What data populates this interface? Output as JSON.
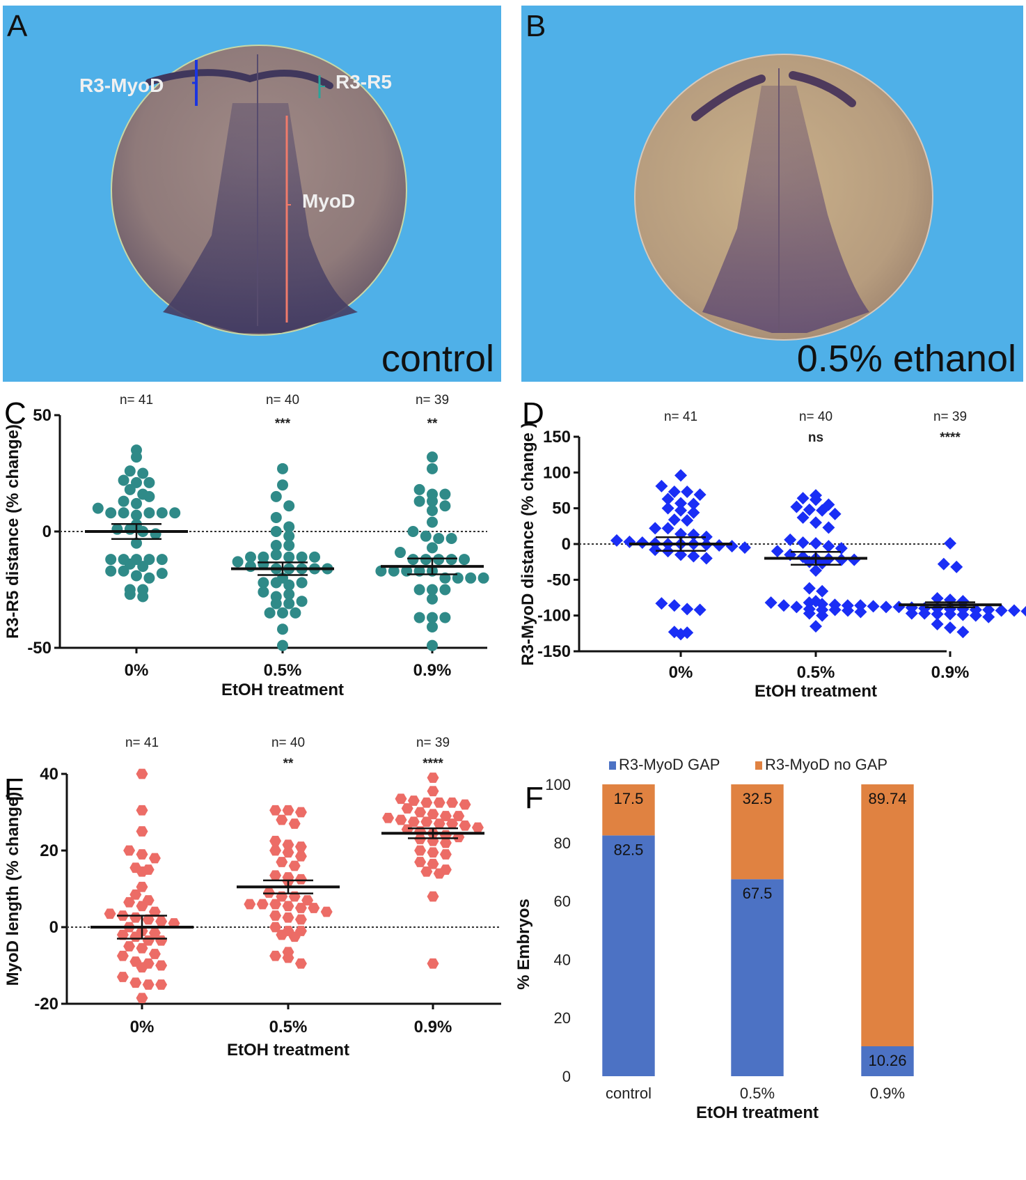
{
  "figure": {
    "panel_a": {
      "letter": "A",
      "caption": "control",
      "annotations": {
        "r3_myod": "R3-MyoD",
        "r3_r5": "R3-R5",
        "myod": "MyoD"
      },
      "colors": {
        "background": "#4fb0e8",
        "r3_myod_line": "#1a35e0",
        "r3_r5_line": "#2aa39a",
        "myod_line": "#f07b6b"
      }
    },
    "panel_b": {
      "letter": "B",
      "caption": "0.5% ethanol"
    }
  },
  "chart_data": [
    {
      "id": "C",
      "letter": "C",
      "type": "scatter",
      "title": "",
      "xlabel": "EtOH treatment",
      "ylabel": "R3-R5 distance (% change)",
      "ylim": [
        -50,
        50
      ],
      "yticks": [
        -50,
        0,
        50
      ],
      "categories": [
        "0%",
        "0.5%",
        "0.9%"
      ],
      "n_labels": [
        "n= 41",
        "n= 40",
        "n= 39"
      ],
      "significance": [
        "",
        "***",
        "**"
      ],
      "marker": "circle",
      "color": "#2f8a88",
      "reference_line": 0,
      "series": [
        {
          "name": "0%",
          "mean": 0,
          "sem": 3.2,
          "values": [
            35,
            32,
            26,
            22,
            25,
            21,
            21,
            18,
            16,
            13,
            12,
            15,
            10,
            8,
            8,
            7,
            8,
            8,
            8,
            3,
            1,
            1,
            0,
            -1,
            -5,
            -12,
            -12,
            -12,
            -14,
            -12,
            -15,
            -17,
            -17,
            -19,
            -20,
            -18,
            -25,
            -27,
            -25,
            -28,
            -12
          ]
        },
        {
          "name": "0.5%",
          "mean": -16,
          "sem": 2.7,
          "values": [
            27,
            20,
            15,
            11,
            6,
            2,
            0,
            -2,
            -6,
            -6,
            -11,
            -11,
            -10,
            -13,
            -11,
            -11,
            -11,
            -15,
            -14,
            -16,
            -16,
            -16,
            -16,
            -16,
            -20,
            -22,
            -22,
            -23,
            -22,
            -26,
            -28,
            -27,
            -31,
            -30,
            -31,
            -35,
            -35,
            -35,
            -42,
            -49
          ]
        },
        {
          "name": "0.9%",
          "mean": -15,
          "sem": 3.4,
          "values": [
            32,
            27,
            18,
            16,
            13,
            16,
            13,
            11,
            9,
            4,
            0,
            -2,
            -3,
            -3,
            -9,
            -7,
            -12,
            -12,
            -12,
            -12,
            -12,
            -17,
            -17,
            -17,
            -17,
            -17,
            -20,
            -20,
            -20,
            -20,
            -25,
            -25,
            -25,
            -29,
            -37,
            -37,
            -37,
            -41,
            -49
          ]
        }
      ]
    },
    {
      "id": "D",
      "letter": "D",
      "type": "scatter",
      "title": "",
      "xlabel": "EtOH treatment",
      "ylabel": "R3-MyoD distance (% change )",
      "ylim": [
        -150,
        150
      ],
      "yticks": [
        -150,
        -100,
        -50,
        0,
        50,
        100,
        150
      ],
      "categories": [
        "0%",
        "0.5%",
        "0.9%"
      ],
      "n_labels": [
        "n= 41",
        "n= 40",
        "n= 39"
      ],
      "significance": [
        "",
        "ns",
        "****"
      ],
      "marker": "diamond",
      "color": "#1a2ef5",
      "reference_line": 0,
      "series": [
        {
          "name": "0%",
          "mean": 0,
          "sem": 9.5,
          "values": [
            96,
            81,
            73,
            73,
            69,
            63,
            57,
            56,
            50,
            47,
            44,
            34,
            33,
            22,
            22,
            14,
            13,
            10,
            5,
            3,
            2,
            1,
            0,
            0,
            0,
            -1,
            -2,
            -3,
            -5,
            -8,
            -10,
            -15,
            -17,
            -20,
            -83,
            -86,
            -91,
            -92,
            -123,
            -124,
            -126
          ]
        },
        {
          "name": "0.5%",
          "mean": -20,
          "sem": 9.0,
          "values": [
            68,
            64,
            62,
            55,
            52,
            48,
            47,
            42,
            37,
            30,
            23,
            6,
            2,
            1,
            -3,
            -6,
            -10,
            -15,
            -18,
            -20,
            -21,
            -22,
            -22,
            -25,
            -27,
            -37,
            -62,
            -66,
            -80,
            -82,
            -86,
            -88,
            -91,
            -92,
            -92,
            -93,
            -95,
            -97,
            -100,
            -115
          ]
        },
        {
          "name": "0.9%",
          "mean": -85,
          "sem": 3.5,
          "values": [
            1,
            -28,
            -32,
            -76,
            -78,
            -80,
            -82,
            -84,
            -85,
            -86,
            -86,
            -87,
            -88,
            -88,
            -89,
            -90,
            -90,
            -91,
            -91,
            -92,
            -92,
            -93,
            -93,
            -94,
            -94,
            -95,
            -95,
            -96,
            -96,
            -97,
            -97,
            -98,
            -98,
            -99,
            -100,
            -102,
            -112,
            -117,
            -123
          ]
        }
      ]
    },
    {
      "id": "E",
      "letter": "E",
      "type": "scatter",
      "title": "",
      "xlabel": "EtOH treatment",
      "ylabel": "MyoD length (% change)",
      "ylim": [
        -20,
        40
      ],
      "yticks": [
        -20,
        0,
        20,
        40
      ],
      "categories": [
        "0%",
        "0.5%",
        "0.9%"
      ],
      "n_labels": [
        "n= 41",
        "n= 40",
        "n= 39"
      ],
      "significance": [
        "",
        "**",
        "****"
      ],
      "marker": "hexagon",
      "color": "#ec6c66",
      "reference_line": 0,
      "series": [
        {
          "name": "0%",
          "mean": 0,
          "sem": 3.0,
          "values": [
            40,
            30.5,
            25,
            20,
            19,
            18,
            15.5,
            15,
            14.5,
            10.5,
            8.5,
            7,
            6.5,
            5.5,
            4,
            3.5,
            3,
            2.5,
            2,
            1.5,
            1,
            0,
            -1,
            -1.5,
            -2,
            -2.5,
            -3.5,
            -3.5,
            -5,
            -5.5,
            -7,
            -7.5,
            -9,
            -9.5,
            -10,
            -10.5,
            -13,
            -14.5,
            -15,
            -15,
            -18.5
          ]
        },
        {
          "name": "0.5%",
          "mean": 10.5,
          "sem": 1.7,
          "values": [
            30.5,
            30.5,
            30,
            28,
            27,
            22.5,
            21.5,
            21,
            20,
            19.5,
            18.5,
            17,
            16,
            13.5,
            13,
            12.5,
            12,
            9,
            8,
            8,
            7,
            6,
            6,
            6,
            5.5,
            5,
            5,
            4,
            3,
            2.5,
            2,
            0,
            -1,
            -1,
            -2,
            -2.5,
            -6.5,
            -7.5,
            -8,
            -9.5
          ]
        },
        {
          "name": "0.9%",
          "mean": 24.5,
          "sem": 1.3,
          "values": [
            39,
            35.5,
            33.5,
            33,
            32.5,
            32.5,
            32.5,
            32,
            31,
            30,
            29.5,
            29,
            29,
            28.5,
            28,
            27.5,
            27.5,
            27,
            27,
            26.5,
            26,
            25.5,
            25,
            24.5,
            24,
            23.5,
            23,
            22.5,
            22,
            20,
            19.5,
            19,
            17,
            16.5,
            15,
            14.5,
            14,
            8,
            -9.5
          ]
        }
      ]
    },
    {
      "id": "F",
      "letter": "F",
      "type": "bar",
      "stacked": true,
      "title": "",
      "xlabel": "EtOH treatment",
      "ylabel": "% Embryos",
      "ylim": [
        0,
        100
      ],
      "yticks": [
        0,
        20,
        40,
        60,
        80,
        100
      ],
      "categories": [
        "control",
        "0.5%",
        "0.9%"
      ],
      "legend_position": "top",
      "series": [
        {
          "name": "R3-MyoD GAP",
          "color": "#4c72c4",
          "values": [
            82.5,
            67.5,
            10.26
          ],
          "labels": [
            "82.5",
            "67.5",
            "10.26"
          ]
        },
        {
          "name": "R3-MyoD no GAP",
          "color": "#e08241",
          "values": [
            17.5,
            32.5,
            89.74
          ],
          "labels": [
            "17.5",
            "32.5",
            "89.74"
          ]
        }
      ]
    }
  ]
}
